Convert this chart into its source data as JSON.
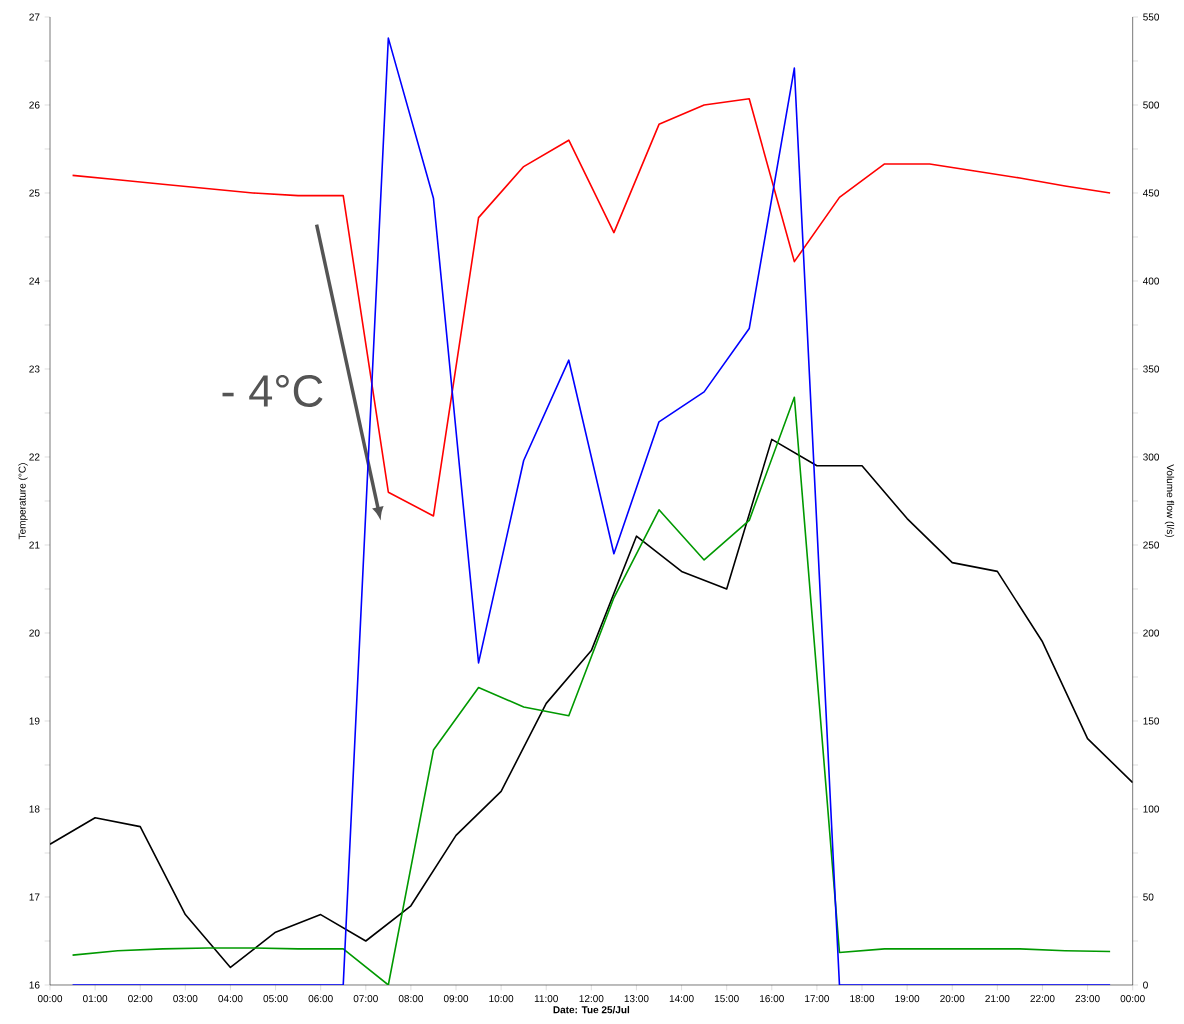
{
  "chart_data": {
    "type": "line",
    "xlabel": "**Date: Tue 25/Jul**",
    "ylabel": "Temperature (°C)",
    "y2label": "Volume flow (l/s)",
    "annotations": [
      "- 4°C"
    ],
    "xlim": [
      0,
      24
    ],
    "xticks": [
      {
        "value": 0,
        "label": "00:00"
      },
      {
        "value": 1,
        "label": "01:00"
      },
      {
        "value": 2,
        "label": "02:00"
      },
      {
        "value": 3,
        "label": "03:00"
      },
      {
        "value": 4,
        "label": "04:00"
      },
      {
        "value": 5,
        "label": "05:00"
      },
      {
        "value": 6,
        "label": "06:00"
      },
      {
        "value": 7,
        "label": "07:00"
      },
      {
        "value": 8,
        "label": "08:00"
      },
      {
        "value": 9,
        "label": "09:00"
      },
      {
        "value": 10,
        "label": "10:00"
      },
      {
        "value": 11,
        "label": "11:00"
      },
      {
        "value": 12,
        "label": "12:00"
      },
      {
        "value": 13,
        "label": "13:00"
      },
      {
        "value": 14,
        "label": "14:00"
      },
      {
        "value": 15,
        "label": "15:00"
      },
      {
        "value": 16,
        "label": "16:00"
      },
      {
        "value": 17,
        "label": "17:00"
      },
      {
        "value": 18,
        "label": "18:00"
      },
      {
        "value": 19,
        "label": "19:00"
      },
      {
        "value": 20,
        "label": "20:00"
      },
      {
        "value": 21,
        "label": "21:00"
      },
      {
        "value": 22,
        "label": "22:00"
      },
      {
        "value": 23,
        "label": "23:00"
      },
      {
        "value": 24,
        "label": "00:00"
      }
    ],
    "ylim": [
      16,
      27
    ],
    "yticks": [
      16,
      {
        "value": 16.5,
        "label": null
      },
      17,
      {
        "value": 17.5,
        "label": null
      },
      18,
      {
        "value": 18.5,
        "label": null
      },
      19,
      {
        "value": 19.5,
        "label": null
      },
      20,
      {
        "value": 20.5,
        "label": null
      },
      21,
      {
        "value": 21.5,
        "label": null
      },
      22,
      {
        "value": 22.5,
        "label": null
      },
      23,
      {
        "value": 23.5,
        "label": null
      },
      24,
      {
        "value": 24.5,
        "label": null
      },
      25,
      {
        "value": 25.5,
        "label": null
      },
      26,
      {
        "value": 26.5,
        "label": null
      },
      27
    ],
    "y2lim": [
      0,
      550
    ],
    "y2ticks": [
      0,
      {
        "value": 25,
        "label": null
      },
      50,
      {
        "value": 75,
        "label": null
      },
      100,
      {
        "value": 125,
        "label": null
      },
      150,
      {
        "value": 175,
        "label": null
      },
      200,
      {
        "value": 225,
        "label": null
      },
      250,
      {
        "value": 275,
        "label": null
      },
      300,
      {
        "value": 325,
        "label": null
      },
      350,
      {
        "value": 375,
        "label": null
      },
      400,
      {
        "value": 425,
        "label": null
      },
      450,
      {
        "value": 475,
        "label": null
      },
      500,
      {
        "value": 525,
        "label": null
      },
      550
    ],
    "series": [
      {
        "color": "#ff0000",
        "x": [
          0.5,
          1.5,
          2.5,
          3.5,
          4.5,
          5.5,
          6.5,
          7.5,
          8.5,
          9.5,
          10.5,
          11.5,
          12.5,
          13.5,
          14.5,
          15.5,
          16.5,
          17.5,
          18.5,
          19.5,
          20.5,
          21.5,
          22.5,
          23.5
        ],
        "values": [
          25.2,
          25.15,
          25.1,
          25.05,
          25.0,
          24.97,
          24.97,
          21.6,
          21.33,
          24.72,
          25.3,
          25.6,
          24.55,
          25.78,
          26.0,
          26.07,
          24.22,
          24.95,
          25.33,
          25.33,
          25.25,
          25.17,
          25.08,
          25.0
        ]
      },
      {
        "color": "#000000",
        "x": [
          0,
          1,
          2,
          3,
          4,
          5,
          6,
          7,
          8,
          9,
          10,
          11,
          12,
          13,
          14,
          15,
          16,
          17,
          18,
          19,
          20,
          21,
          22,
          23,
          24
        ],
        "values": [
          17.6,
          17.9,
          17.8,
          16.8,
          16.2,
          16.6,
          16.8,
          16.5,
          16.9,
          17.7,
          18.2,
          19.2,
          19.8,
          21.1,
          20.7,
          20.5,
          22.2,
          21.9,
          21.9,
          21.3,
          20.8,
          20.7,
          19.9,
          18.8,
          18.3
        ]
      },
      {
        "color": "#009900",
        "x": [
          0.5,
          1.5,
          2.5,
          3.5,
          4.5,
          5.5,
          6.5,
          7.5,
          8.5,
          9.5,
          10.5,
          11.5,
          12.5,
          13.5,
          14.5,
          15.5,
          16.5,
          17.5,
          18.5,
          19.5,
          20.5,
          21.5,
          22.5,
          23.5
        ],
        "values": [
          16.34,
          16.39,
          16.41,
          16.42,
          16.42,
          16.41,
          16.41,
          16.0,
          18.67,
          19.38,
          19.16,
          19.06,
          20.4,
          21.4,
          20.83,
          21.28,
          22.68,
          16.37,
          16.41,
          16.41,
          16.41,
          16.41,
          16.39,
          16.38
        ]
      },
      {
        "color": "#0000ff",
        "axis": "y2",
        "x": [
          0.5,
          1.5,
          2.5,
          3.5,
          4.5,
          5.5,
          6.5,
          7.5,
          8.5,
          9.5,
          10.5,
          11.5,
          12.5,
          13.5,
          14.5,
          15.5,
          16.5,
          17.5,
          18.5,
          19.5,
          20.5,
          21.5,
          22.5,
          23.5
        ],
        "values": [
          0,
          0,
          0,
          0,
          0,
          0,
          0,
          538,
          447,
          183,
          298,
          355,
          245,
          320,
          337,
          373,
          521,
          0,
          0,
          0,
          0,
          0,
          0,
          0
        ]
      }
    ]
  }
}
